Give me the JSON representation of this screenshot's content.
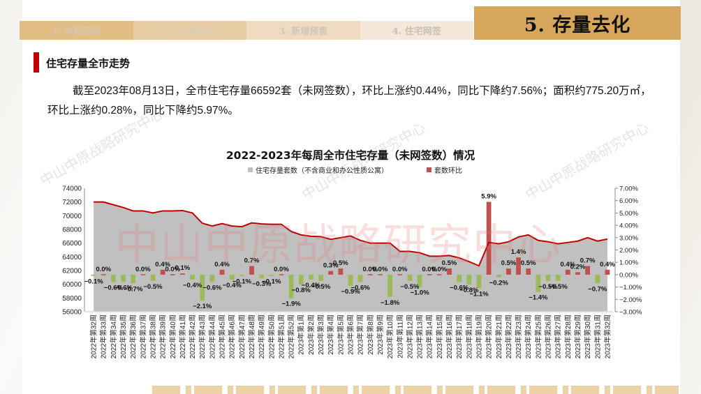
{
  "nav": {
    "tabs": [
      {
        "label": "1. 本期要闻"
      },
      {
        "label": "2. 土地市场"
      },
      {
        "label": "3. 新增预售"
      },
      {
        "label": "4. 住宅网签"
      }
    ],
    "active_tab": {
      "label": "5. 存量去化"
    }
  },
  "section": {
    "title": "住宅存量全市走势"
  },
  "summary": {
    "text": "截至2023年08月13日，全市住宅存量66592套（未网签数），环比上涨约0.44%，同比下降约7.56%；面积约775.20万㎡，环比上涨约0.28%，同比下降约5.97%。"
  },
  "watermark": {
    "text": "中山中原战略研究中心"
  },
  "chart_data": {
    "type": "bar+area",
    "title": "2022-2023年每周全市住宅存量（未网签数）情况",
    "legend": [
      {
        "name": "住宅存量套数（不含商业和办公性质公寓）",
        "color": "#c0c0c0"
      },
      {
        "name": "套数环比",
        "color": "#c0504d"
      }
    ],
    "legend_position": "top",
    "colors": {
      "area_fill": "#c0c0c0",
      "area_line": "#c00000",
      "bar_positive": "#c0504d",
      "bar_negative": "#9bbb59"
    },
    "y_left": {
      "label": "",
      "ylim": [
        56000,
        74000
      ],
      "ticks": [
        "74000",
        "72000",
        "70000",
        "68000",
        "66000",
        "64000",
        "62000",
        "60000",
        "58000",
        "56000"
      ]
    },
    "y_right": {
      "label": "",
      "ylim": [
        -3.0,
        7.0
      ],
      "ticks": [
        "7.00%",
        "6.00%",
        "5.00%",
        "4.00%",
        "3.00%",
        "2.00%",
        "1.00%",
        "0.00%",
        "-1.00%",
        "-2.00%",
        "-3.00%"
      ]
    },
    "grid": false,
    "categories": [
      "2022年第32周",
      "2022年第33周",
      "2022年第34周",
      "2022年第35周",
      "2022年第36周",
      "2022年第37周",
      "2022年第38周",
      "2022年第39周",
      "2022年第40周",
      "2022年第41周",
      "2022年第42周",
      "2022年第43周",
      "2022年第44周",
      "2022年第45周",
      "2022年第46周",
      "2022年第47周",
      "2022年第48周",
      "2022年第49周",
      "2022年第50周",
      "2022年第51周",
      "2022年第52周",
      "2023年第1周",
      "2023年第2周",
      "2023年第3周",
      "2023年第4周",
      "2023年第5周",
      "2023年第6周",
      "2023年第7周",
      "2023年第8周",
      "2023年第9周",
      "2023年第10周",
      "2023年第11周",
      "2023年第12周",
      "2023年第13周",
      "2023年第14周",
      "2023年第15周",
      "2023年第16周",
      "2023年第17周",
      "2023年第18周",
      "2023年第19周",
      "2023年第20周",
      "2023年第21周",
      "2023年第22周",
      "2023年第23周",
      "2023年第24周",
      "2023年第25周",
      "2023年第26周",
      "2023年第27周",
      "2023年第28周",
      "2023年第29周",
      "2023年第30周",
      "2023年第31周",
      "2023年第32周"
    ],
    "series": [
      {
        "name": "住宅存量套数（不含商业和办公性质公寓）",
        "type": "area",
        "axis": "left",
        "values": [
          72000,
          72000,
          71600,
          71200,
          70700,
          70700,
          70400,
          70700,
          70700,
          70750,
          70400,
          68900,
          68500,
          68850,
          68500,
          68400,
          68950,
          68800,
          68750,
          68750,
          67700,
          67200,
          67000,
          66950,
          66550,
          66800,
          67050,
          66400,
          66000,
          66000,
          66000,
          64800,
          64800,
          64600,
          64100,
          64100,
          64200,
          63850,
          63300,
          62700,
          66100,
          65900,
          66200,
          66900,
          67200,
          66400,
          66200,
          65900,
          66100,
          66300,
          66800,
          66300,
          66600
        ]
      },
      {
        "name": "套数环比",
        "type": "bar",
        "axis": "right",
        "unit": "%",
        "values": [
          -0.1,
          0.0,
          -0.6,
          -0.6,
          -0.7,
          0.0,
          -0.5,
          0.4,
          0.0,
          0.1,
          -0.4,
          -2.1,
          -0.6,
          0.4,
          -0.4,
          -0.1,
          0.7,
          -0.3,
          -0.1,
          0.0,
          -1.9,
          -0.8,
          -0.4,
          -0.5,
          0.3,
          0.5,
          -0.9,
          -0.6,
          0.0,
          0.0,
          -1.8,
          0.0,
          -0.5,
          -1.0,
          0.0,
          0.0,
          0.5,
          -0.6,
          -0.8,
          -1.1,
          5.9,
          -0.2,
          0.5,
          1.4,
          0.5,
          -1.4,
          -0.5,
          -0.5,
          0.4,
          0.2,
          0.7,
          -0.7,
          0.4
        ],
        "labels": [
          "-0.1%",
          "0.0%",
          "-0.6%",
          "-0.6%",
          "-0.7%",
          "0.0%",
          "-0.5%",
          "0.4%",
          "0.0%",
          "0.1%",
          "-0.4%",
          "-2.1%",
          "-0.6%",
          "0.4%",
          "-0.4%",
          "-0.1%",
          "0.7%",
          "-0.3%",
          "-0.1%",
          "0.0%",
          "-1.9%",
          "-0.8%",
          "-0.4%",
          "-0.5%",
          "0.3%",
          "0.5%",
          "-0.9%",
          "-0.6%",
          "0.0%",
          "0.0%",
          "-1.8%",
          "0.0%",
          "-0.5%",
          "-1.0%",
          "0.0%",
          "0.0%",
          "0.5%",
          "-0.6%",
          "-0.8%",
          "-1.1%",
          "5.9%",
          "-0.2%",
          "0.5%",
          "1.4%",
          "0.5%",
          "-1.4%",
          "-0.5%",
          "-0.5%",
          "0.4%",
          "0.2%",
          "0.7%",
          "-0.7%",
          "0.4%"
        ]
      }
    ]
  }
}
